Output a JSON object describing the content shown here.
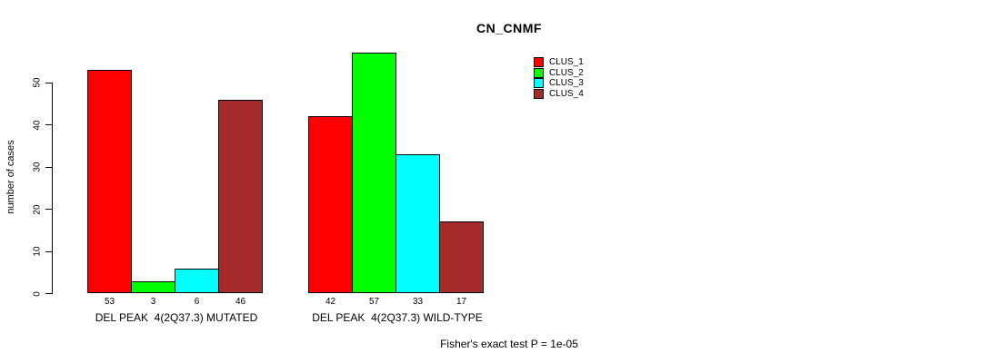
{
  "title": "CN_CNMF",
  "y_axis": {
    "label": "number of cases",
    "ticks": [
      0,
      10,
      20,
      30,
      40,
      50
    ]
  },
  "footer": "Fisher's exact test P = 1e-05",
  "colors": {
    "clus1": "#FF0000",
    "clus2": "#00FF00",
    "clus3": "#00FFFF",
    "clus4": "#A52A2A",
    "background": "#FFFFFF",
    "axis": "#000000"
  },
  "chart_data": {
    "type": "bar",
    "grouped": true,
    "title": "CN_CNMF",
    "xlabel": "",
    "ylabel": "number of cases",
    "categories": [
      "DEL PEAK  4(2Q37.3) MUTATED",
      "DEL PEAK  4(2Q37.3) WILD-TYPE"
    ],
    "series": [
      {
        "name": "CLUS_1",
        "color": "#FF0000",
        "values": [
          53,
          42
        ]
      },
      {
        "name": "CLUS_2",
        "color": "#00FF00",
        "values": [
          3,
          57
        ]
      },
      {
        "name": "CLUS_3",
        "color": "#00FFFF",
        "values": [
          6,
          33
        ]
      },
      {
        "name": "CLUS_4",
        "color": "#A52A2A",
        "values": [
          46,
          17
        ]
      }
    ],
    "bar_value_labels_shown": true,
    "ylim": [
      0,
      57
    ],
    "yticks": [
      0,
      10,
      20,
      30,
      40,
      50
    ],
    "grid": false,
    "legend_position": "top-right",
    "annotation": "Fisher's exact test P = 1e-05"
  }
}
